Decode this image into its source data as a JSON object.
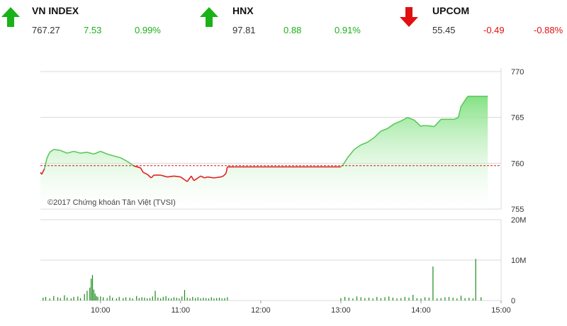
{
  "indices": [
    {
      "name": "VN INDEX",
      "value": "767.27",
      "change": "7.53",
      "percent": "0.99%",
      "direction": "up",
      "active": true
    },
    {
      "name": "HNX",
      "value": "97.81",
      "change": "0.88",
      "percent": "0.91%",
      "direction": "up",
      "active": false
    },
    {
      "name": "UPCOM",
      "value": "55.45",
      "change": "-0.49",
      "percent": "-0.88%",
      "direction": "down",
      "active": false
    }
  ],
  "colors": {
    "up": "#19b219",
    "down": "#e01010",
    "area_top": "#7ee07e",
    "line_up": "#5cc85c",
    "line_down": "#e02020",
    "volume": "#1a8a1a"
  },
  "chart_data": [
    {
      "type": "area",
      "title": "",
      "annotation": "©2017 Chứng khoán Tân Việt (TVSI)",
      "reference": 759.74,
      "y_ticks": [
        "770",
        "765",
        "760",
        "755"
      ],
      "ylim": [
        755,
        770
      ],
      "x_ticks": [
        "10:00",
        "11:00",
        "12:00",
        "13:00",
        "14:00",
        "15:00"
      ],
      "x_range_minutes": [
        555,
        900
      ],
      "grid": true,
      "series": [
        {
          "time_minutes": [
            555,
            556,
            558,
            560,
            562,
            565,
            570,
            575,
            580,
            585,
            590,
            595,
            600,
            605,
            610,
            615,
            620,
            625,
            630,
            632,
            635,
            638,
            640,
            645,
            650,
            655,
            660,
            663,
            665,
            668,
            670,
            675,
            678,
            680,
            685,
            690,
            692,
            694,
            695,
            700,
            720,
            740,
            760,
            780,
            782,
            785,
            790,
            795,
            800,
            805,
            810,
            815,
            820,
            825,
            830,
            835,
            840,
            841,
            845,
            850,
            855,
            860,
            865,
            868,
            870,
            875,
            880,
            881,
            890
          ],
          "values": [
            759.0,
            758.8,
            759.4,
            760.6,
            761.2,
            761.5,
            761.4,
            761.1,
            761.3,
            761.1,
            761.2,
            761.0,
            761.3,
            761.0,
            760.8,
            760.6,
            760.2,
            759.7,
            759.5,
            759.0,
            758.8,
            758.4,
            758.7,
            758.7,
            758.5,
            758.6,
            758.5,
            758.2,
            758.0,
            758.6,
            758.1,
            758.6,
            758.4,
            758.5,
            758.4,
            758.5,
            758.6,
            758.9,
            759.6,
            759.6,
            759.6,
            759.6,
            759.6,
            759.6,
            759.9,
            760.6,
            761.5,
            762.0,
            762.3,
            762.8,
            763.5,
            763.8,
            764.3,
            764.6,
            765.0,
            764.7,
            764.0,
            764.1,
            764.1,
            764.0,
            764.8,
            764.8,
            764.8,
            765.0,
            766.2,
            767.3,
            767.3,
            767.3,
            767.3
          ]
        }
      ]
    },
    {
      "type": "bar",
      "title": "",
      "y_ticks": [
        "20M",
        "10M",
        "0"
      ],
      "ylim": [
        0,
        20000000
      ],
      "x_ticks": [
        "10:00",
        "11:00",
        "12:00",
        "13:00",
        "14:00",
        "15:00"
      ],
      "series": [
        {
          "time_minutes": [
            557,
            559,
            562,
            565,
            568,
            570,
            573,
            575,
            578,
            580,
            583,
            585,
            588,
            590,
            592,
            593,
            594,
            595,
            596,
            597,
            598,
            600,
            602,
            605,
            607,
            609,
            612,
            614,
            617,
            619,
            622,
            624,
            627,
            629,
            631,
            633,
            635,
            637,
            639,
            641,
            643,
            645,
            647,
            649,
            651,
            653,
            655,
            657,
            659,
            661,
            663,
            665,
            667,
            669,
            671,
            673,
            675,
            677,
            679,
            681,
            683,
            685,
            687,
            689,
            691,
            693,
            695,
            780,
            783,
            786,
            789,
            792,
            795,
            798,
            801,
            804,
            807,
            810,
            813,
            816,
            819,
            822,
            825,
            828,
            831,
            834,
            837,
            840,
            843,
            846,
            849,
            852,
            855,
            858,
            861,
            864,
            867,
            870,
            873,
            876,
            879,
            881,
            885
          ],
          "values": [
            700000,
            900000,
            500000,
            1100000,
            800000,
            600000,
            1300000,
            700000,
            500000,
            900000,
            1000000,
            600000,
            1600000,
            2400000,
            3200000,
            5400000,
            6300000,
            2700000,
            1700000,
            1100000,
            900000,
            1000000,
            800000,
            600000,
            1200000,
            700000,
            500000,
            900000,
            600000,
            800000,
            700000,
            500000,
            1100000,
            600000,
            800000,
            700000,
            500000,
            600000,
            1000000,
            2400000,
            700000,
            500000,
            900000,
            1100000,
            600000,
            500000,
            800000,
            700000,
            500000,
            1000000,
            2600000,
            700000,
            500000,
            900000,
            600000,
            800000,
            500000,
            700000,
            600000,
            500000,
            800000,
            500000,
            600000,
            700000,
            500000,
            600000,
            800000,
            600000,
            900000,
            700000,
            500000,
            1000000,
            800000,
            600000,
            700000,
            500000,
            900000,
            600000,
            800000,
            1000000,
            700000,
            500000,
            600000,
            900000,
            700000,
            1400000,
            600000,
            500000,
            800000,
            700000,
            8400000,
            500000,
            600000,
            800000,
            900000,
            700000,
            500000,
            1200000,
            600000,
            700000,
            500000,
            10300000,
            800000
          ]
        }
      ]
    }
  ]
}
